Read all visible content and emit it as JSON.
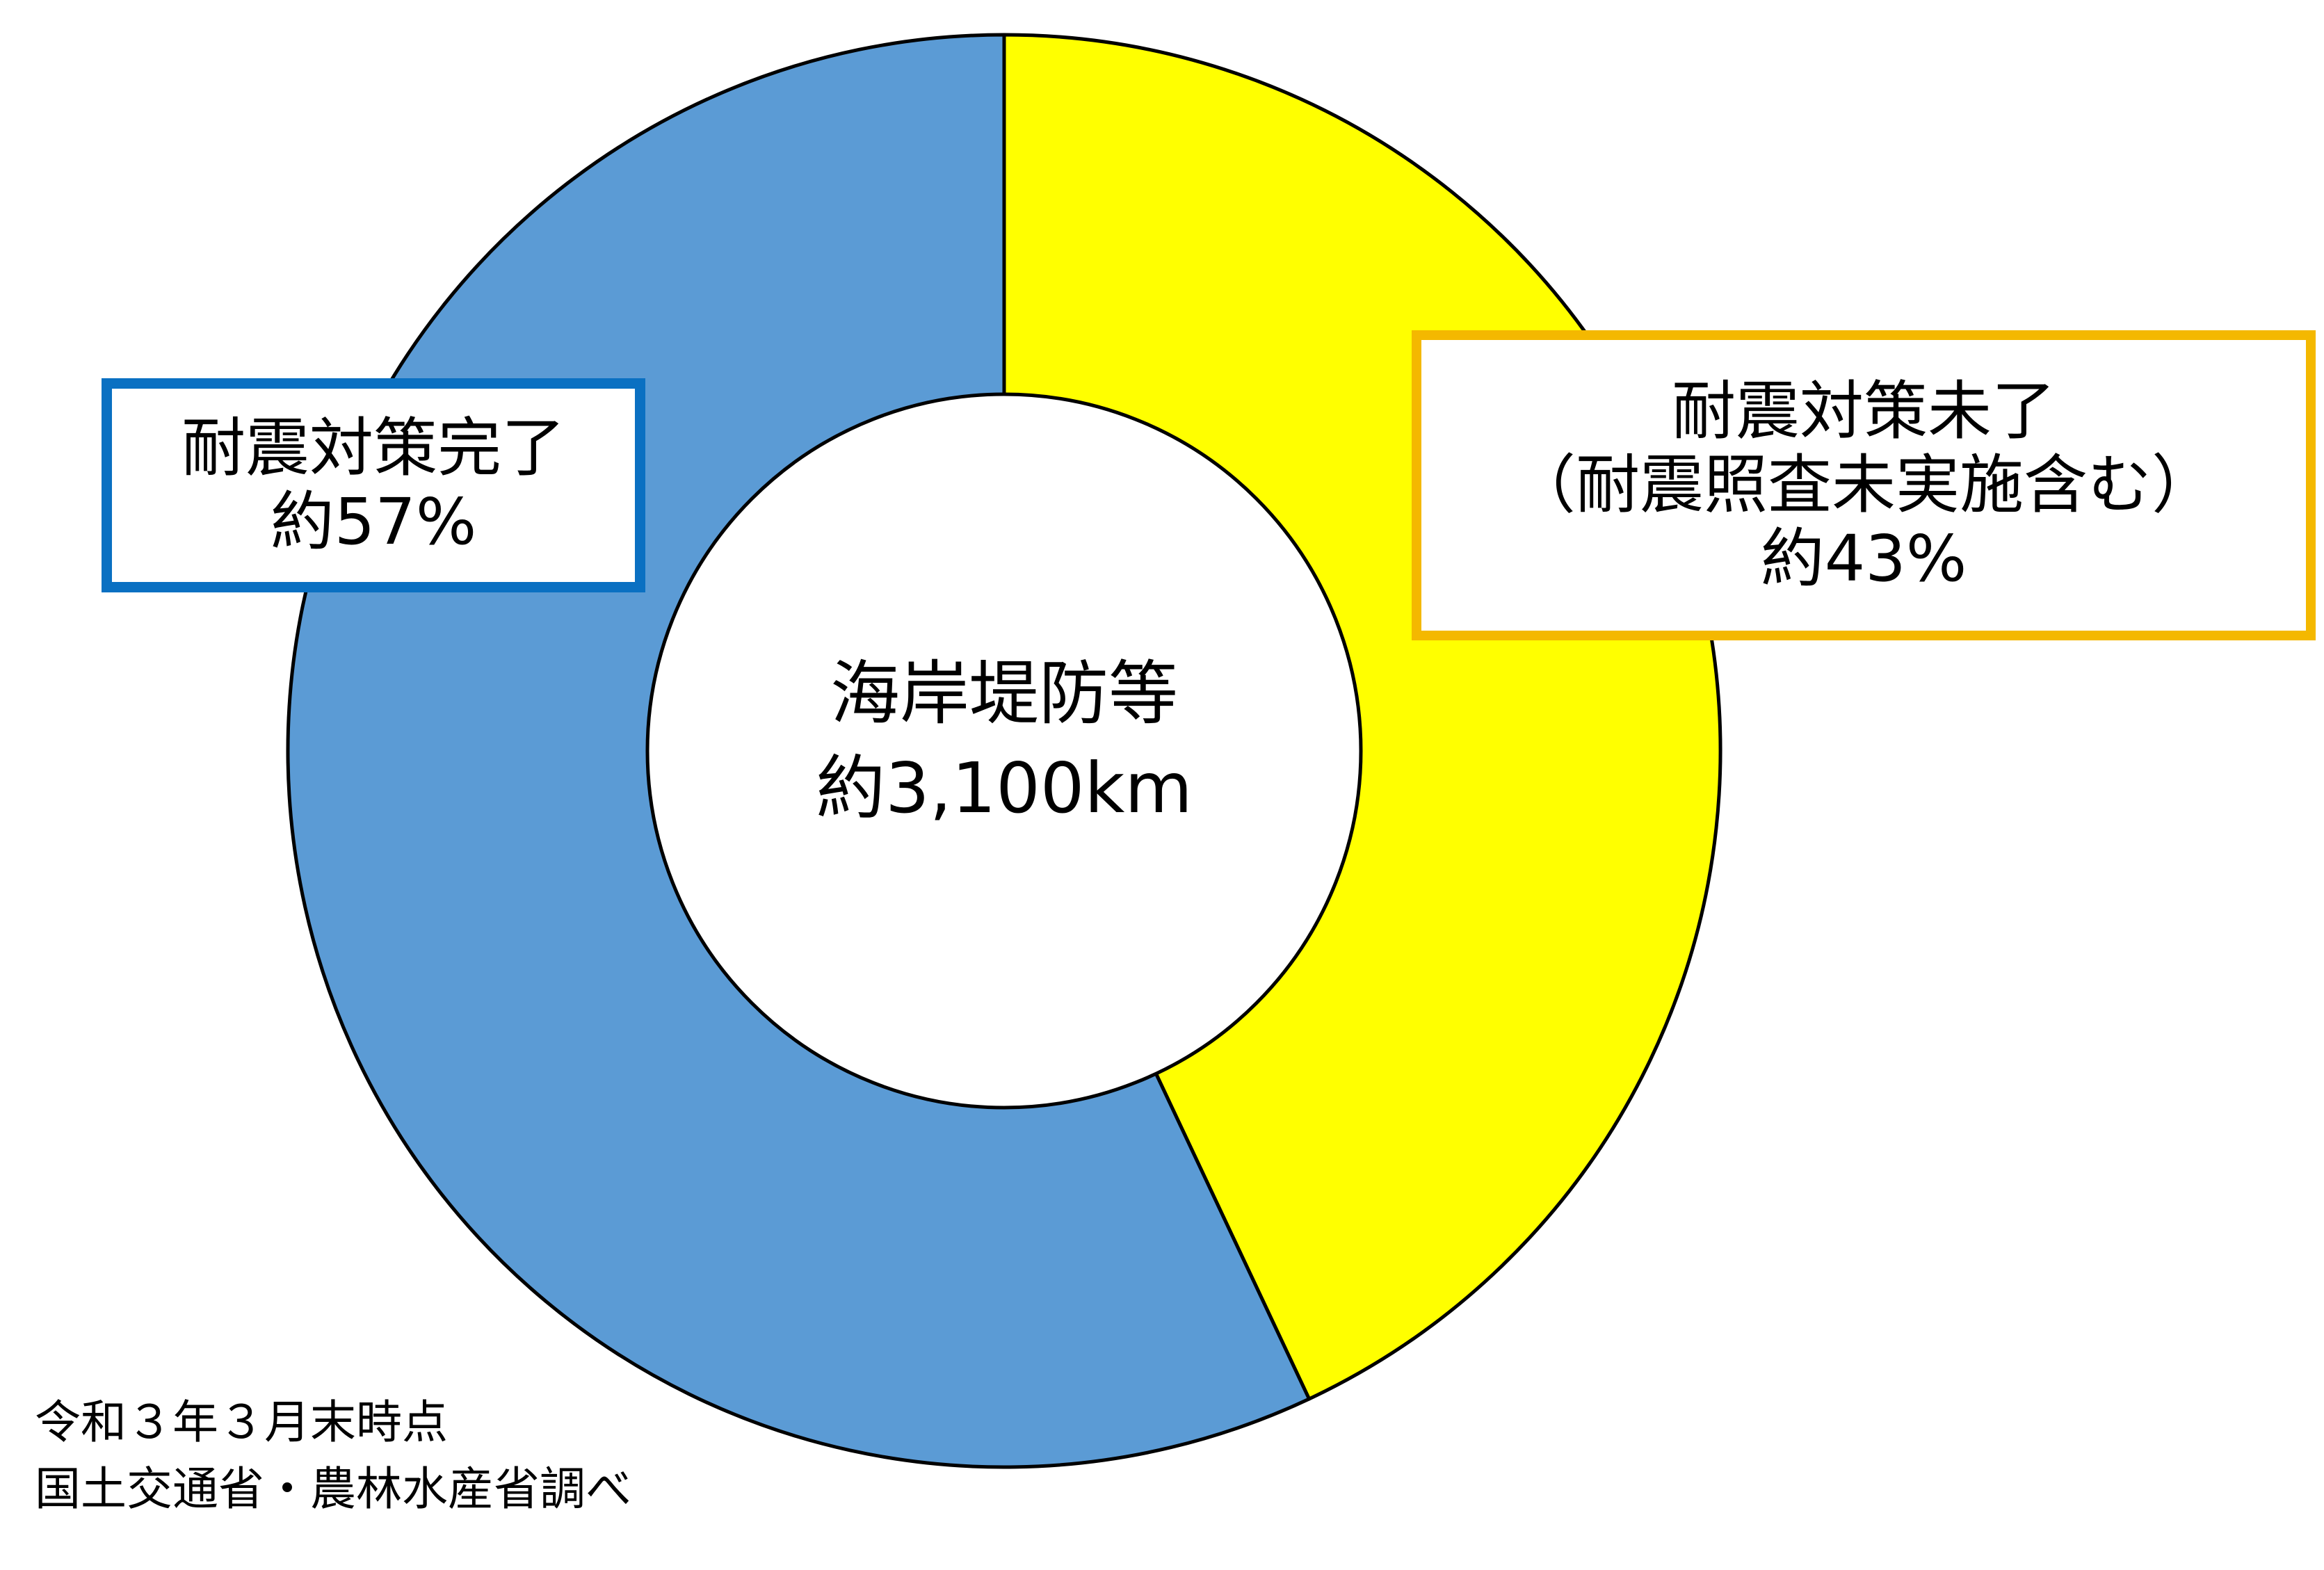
{
  "chart_data": {
    "type": "pie",
    "variant": "donut",
    "center": {
      "title": "海岸堤防等",
      "value": "約3,100km"
    },
    "slices": [
      {
        "label": "耐震対策未了",
        "sublabel": "（耐震照査未実施含む）",
        "value_label": "約43%",
        "value": 43,
        "color": "#ffff00",
        "callout_border": "#f4b800"
      },
      {
        "label": "耐震対策完了",
        "value_label": "約57%",
        "value": 57,
        "color": "#5b9bd5",
        "callout_border": "#0a70c2"
      }
    ],
    "start_angle": "12 o'clock",
    "direction": "clockwise",
    "notes": [
      "令和３年３月末時点",
      "国土交通省・農林水産省調べ"
    ]
  }
}
